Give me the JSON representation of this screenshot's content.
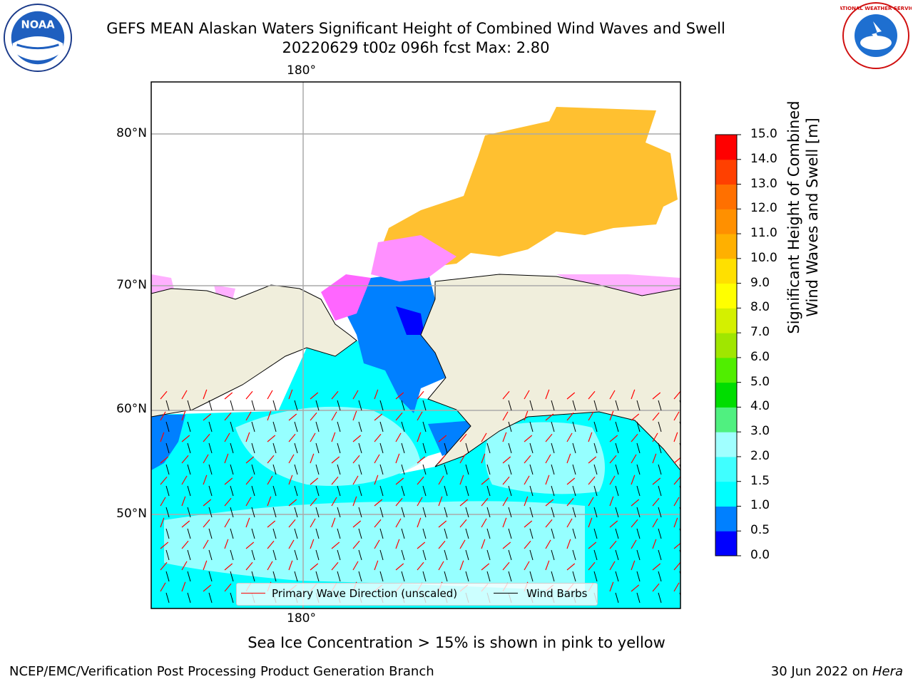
{
  "header": {
    "title_line1": "GEFS MEAN Alaskan Waters Significant Height of Combined Wind Waves and Swell",
    "title_line2": "20220629 t00z 096h fcst   Max: 2.80"
  },
  "logos": {
    "left": {
      "name": "noaa-logo",
      "text": "NOAA"
    },
    "right": {
      "name": "nws-logo",
      "text": "NATIONAL WEATHER SERVICE"
    }
  },
  "map": {
    "lon_labels": [
      "180°",
      "180°"
    ],
    "lat_labels": [
      "80°N",
      "70°N",
      "60°N",
      "50°N"
    ],
    "ocean_color": "#00ffff",
    "land_color": "#f0eedc"
  },
  "legend": {
    "items": [
      {
        "label": "Primary Wave Direction (unscaled)",
        "color": "#ff0000"
      },
      {
        "label": "Wind Barbs",
        "color": "#000000"
      }
    ]
  },
  "colorbar": {
    "title_line1": "Significant Height of Combined",
    "title_line2": "Wind Waves and Swell [m]",
    "ticks": [
      "0.0",
      "0.5",
      "1.0",
      "1.5",
      "2.0",
      "3.0",
      "4.0",
      "5.0",
      "6.0",
      "7.0",
      "8.0",
      "9.0",
      "10.0",
      "11.0",
      "12.0",
      "13.0",
      "14.0",
      "15.0"
    ],
    "colors": [
      "#0000ff",
      "#0080ff",
      "#00ffff",
      "#40ffff",
      "#a0ffff",
      "#50f080",
      "#00dd00",
      "#50ee00",
      "#a0e600",
      "#d4f000",
      "#ffff00",
      "#ffe000",
      "#ffb000",
      "#ff9000",
      "#ff7000",
      "#ff4000",
      "#ff0000"
    ]
  },
  "caption": "Sea Ice Concentration > 15% is shown in pink to yellow",
  "footer": {
    "left": "NCEP/EMC/Verification Post Processing Product Generation Branch",
    "right_prefix": "30 Jun 2022 on ",
    "right_host": "Hera"
  }
}
